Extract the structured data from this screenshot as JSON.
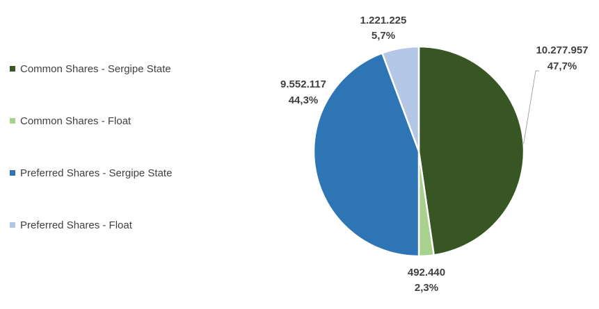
{
  "chart_data": {
    "type": "pie",
    "title": "",
    "slices": [
      {
        "name": "Common Shares - Sergipe State",
        "value": 10277957,
        "value_label": "10.277.957",
        "percent_label": "47,7%",
        "color": "#375623"
      },
      {
        "name": "Common Shares - Float",
        "value": 492440,
        "value_label": "492.440",
        "percent_label": "2,3%",
        "color": "#a9d18e"
      },
      {
        "name": "Preferred Shares - Sergipe State",
        "value": 9552117,
        "value_label": "9.552.117",
        "percent_label": "44,3%",
        "color": "#2e75b6"
      },
      {
        "name": "Preferred Shares - Float",
        "value": 1221225,
        "value_label": "1.221.225",
        "percent_label": "5,7%",
        "color": "#b4c7e7"
      }
    ],
    "legend_position": "left",
    "start_angle_deg": 0,
    "direction": "clockwise"
  }
}
